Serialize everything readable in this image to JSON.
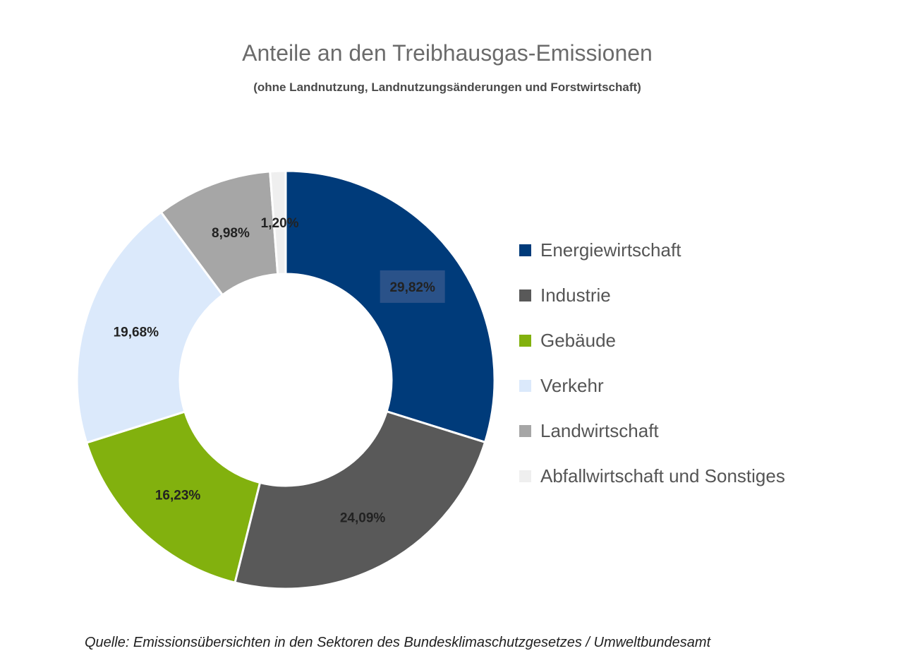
{
  "chart_data": {
    "type": "pie",
    "title": "Anteile an den Treibhausgas-Emissionen",
    "subtitle": "(ohne Landnutzung, Landnutzungsänderungen und Forstwirtschaft)",
    "categories": [
      "Energiewirtschaft",
      "Industrie",
      "Gebäude",
      "Verkehr",
      "Landwirtschaft",
      "Abfallwirtschaft und Sonstiges"
    ],
    "values": [
      29.82,
      24.09,
      16.23,
      19.68,
      8.98,
      1.2
    ],
    "value_labels": [
      "29,82%",
      "24,09%",
      "16,23%",
      "19,68%",
      "8,98%",
      "1,20%"
    ],
    "colors": [
      "#003b7a",
      "#595959",
      "#82b10e",
      "#dbe9fb",
      "#a6a6a6",
      "#efefef"
    ],
    "style": "donut",
    "legend_position": "right",
    "source": "Quelle: Emissionsübersichten in den Sektoren des Bundesklimaschutzgesetzes  / Umweltbundesamt"
  }
}
